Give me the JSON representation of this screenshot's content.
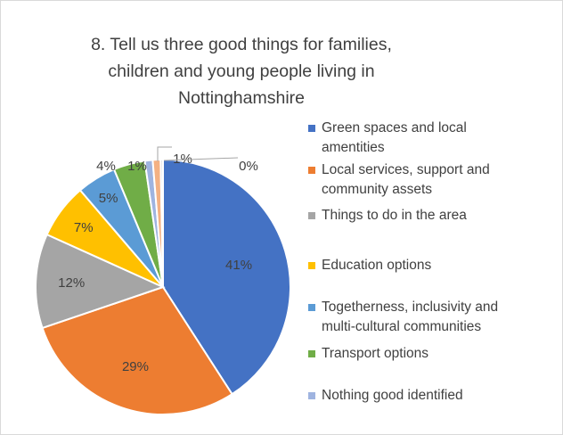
{
  "chart_data": {
    "type": "pie",
    "title_lines": [
      "8. Tell us three good things for families,",
      "children and young people living in",
      "Nottinghamshire"
    ],
    "slices": [
      {
        "name": "Green spaces and local amentities",
        "label": "41%",
        "value": 41,
        "color": "#4472c4"
      },
      {
        "name": "Local services, support and community assets",
        "label": "29%",
        "value": 29,
        "color": "#ed7d31"
      },
      {
        "name": "Things to do in the area",
        "label": "12%",
        "value": 12,
        "color": "#a5a5a5"
      },
      {
        "name": "Education options",
        "label": "7%",
        "value": 7,
        "color": "#ffc000"
      },
      {
        "name": "Togetherness, inclusivity and multi-cultural communities",
        "label": "5%",
        "value": 5,
        "color": "#5b9bd5"
      },
      {
        "name": "Transport options",
        "label": "4%",
        "value": 4,
        "color": "#70ad47"
      },
      {
        "name": "Nothing good identified",
        "label": "1%",
        "value": 1,
        "color": "#9fb4e0"
      },
      {
        "name": "",
        "label": "1%",
        "value": 1,
        "color": "#f4b183"
      },
      {
        "name": "",
        "label": "0%",
        "value": 0.3,
        "color": "#d9d9d9"
      }
    ],
    "legend_position": "right"
  },
  "legend_lines": [
    "Green spaces and local\namentities",
    "Local services, support and\ncommunity assets",
    "Things to do in the area",
    "Education options",
    "Togetherness, inclusivity and\nmulti-cultural communities",
    "Transport options",
    "Nothing good identified"
  ]
}
